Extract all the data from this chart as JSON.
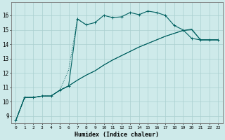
{
  "xlabel": "Humidex (Indice chaleur)",
  "bg_color": "#ceeaea",
  "grid_color": "#aacfcf",
  "line_color": "#006060",
  "xlim": [
    -0.5,
    23.5
  ],
  "ylim": [
    8.5,
    16.9
  ],
  "yticks": [
    9,
    10,
    11,
    12,
    13,
    14,
    15,
    16
  ],
  "xticks": [
    0,
    1,
    2,
    3,
    4,
    5,
    6,
    7,
    8,
    9,
    10,
    11,
    12,
    13,
    14,
    15,
    16,
    17,
    18,
    19,
    20,
    21,
    22,
    23
  ],
  "curve1_x": [
    0,
    1,
    2,
    3,
    4,
    5,
    6,
    7,
    8,
    9,
    10,
    11,
    12,
    13,
    14,
    15,
    16,
    17,
    18,
    19,
    20,
    21,
    22,
    23
  ],
  "curve1_y": [
    8.7,
    10.3,
    10.3,
    10.4,
    10.4,
    10.8,
    11.1,
    15.75,
    15.35,
    15.5,
    16.0,
    15.85,
    15.9,
    16.2,
    16.05,
    16.3,
    16.2,
    16.0,
    15.3,
    15.0,
    14.4,
    14.3,
    14.3,
    14.3
  ],
  "curve2_x": [
    0,
    1,
    2,
    3,
    4,
    5,
    6,
    7,
    8
  ],
  "curve2_y": [
    8.7,
    10.3,
    10.3,
    10.4,
    10.4,
    10.8,
    12.2,
    15.75,
    15.35
  ],
  "curve3_x": [
    0,
    1,
    2,
    3,
    4,
    5,
    6,
    7,
    8,
    9,
    10,
    11,
    12,
    13,
    14,
    15,
    16,
    17,
    18,
    19,
    20,
    21,
    22,
    23
  ],
  "curve3_y": [
    8.7,
    10.3,
    10.3,
    10.4,
    10.4,
    10.8,
    11.1,
    11.5,
    11.85,
    12.15,
    12.55,
    12.9,
    13.2,
    13.5,
    13.8,
    14.05,
    14.3,
    14.55,
    14.75,
    14.95,
    15.05,
    14.3,
    14.3,
    14.3
  ],
  "curve4_x": [
    0,
    1,
    2,
    3,
    4,
    5,
    6,
    7,
    8,
    9,
    10,
    11,
    12,
    13,
    14,
    15,
    16,
    17,
    18,
    19,
    20,
    21,
    22,
    23
  ],
  "curve4_y": [
    8.7,
    10.3,
    10.3,
    10.4,
    10.4,
    10.8,
    11.1,
    11.5,
    11.85,
    12.15,
    12.55,
    12.9,
    13.2,
    13.5,
    13.8,
    14.05,
    14.3,
    14.55,
    14.75,
    14.95,
    15.0,
    14.3,
    14.3,
    14.3
  ]
}
